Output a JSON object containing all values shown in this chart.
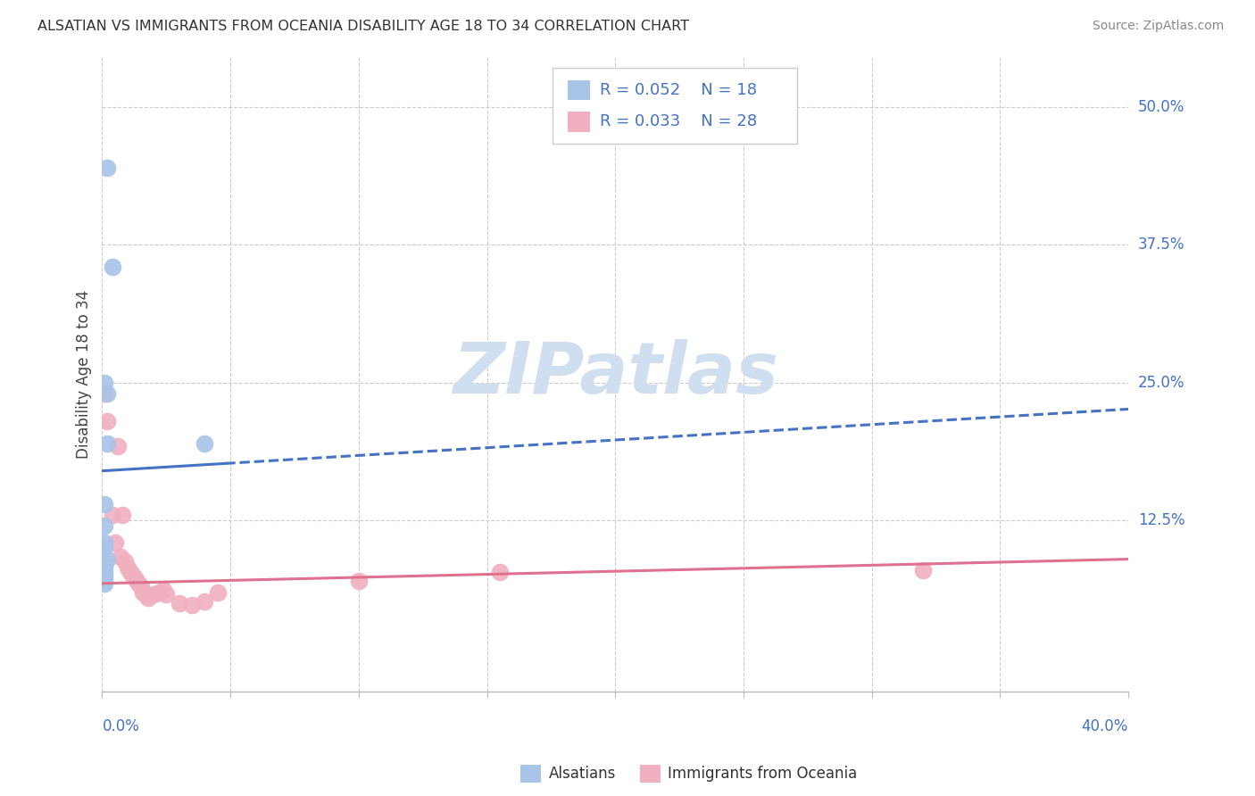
{
  "title": "ALSATIAN VS IMMIGRANTS FROM OCEANIA DISABILITY AGE 18 TO 34 CORRELATION CHART",
  "source": "Source: ZipAtlas.com",
  "ylabel": "Disability Age 18 to 34",
  "ylabel_right_ticks": [
    "50.0%",
    "37.5%",
    "25.0%",
    "12.5%"
  ],
  "ylabel_right_vals": [
    0.5,
    0.375,
    0.25,
    0.125
  ],
  "xmin": 0.0,
  "xmax": 0.4,
  "ymin": -0.03,
  "ymax": 0.545,
  "blue_color": "#a8c4e8",
  "pink_color": "#f0b0c0",
  "blue_line_color": "#4472c4",
  "pink_line_color": "#e07090",
  "watermark_color": "#d0dff0",
  "grid_color": "#cccccc",
  "background_color": "#ffffff",
  "alsatians_x": [
    0.002,
    0.004,
    0.001,
    0.002,
    0.002,
    0.001,
    0.001,
    0.001,
    0.001,
    0.002,
    0.001,
    0.001,
    0.001,
    0.001,
    0.001,
    0.001,
    0.001,
    0.04
  ],
  "alsatians_y": [
    0.445,
    0.355,
    0.25,
    0.24,
    0.195,
    0.14,
    0.12,
    0.105,
    0.1,
    0.09,
    0.085,
    0.082,
    0.078,
    0.075,
    0.073,
    0.07,
    0.068,
    0.195
  ],
  "oceania_x": [
    0.001,
    0.002,
    0.004,
    0.005,
    0.007,
    0.009,
    0.01,
    0.011,
    0.012,
    0.013,
    0.014,
    0.015,
    0.016,
    0.017,
    0.018,
    0.02,
    0.022,
    0.024,
    0.025,
    0.03,
    0.035,
    0.04,
    0.045,
    0.1,
    0.155,
    0.32,
    0.006,
    0.008
  ],
  "oceania_y": [
    0.24,
    0.215,
    0.13,
    0.105,
    0.092,
    0.088,
    0.082,
    0.078,
    0.075,
    0.072,
    0.068,
    0.065,
    0.06,
    0.058,
    0.055,
    0.058,
    0.06,
    0.062,
    0.058,
    0.05,
    0.048,
    0.052,
    0.06,
    0.07,
    0.078,
    0.08,
    0.192,
    0.13
  ],
  "blue_intercept": 0.17,
  "blue_slope": 0.14,
  "pink_intercept": 0.068,
  "pink_slope": 0.055
}
